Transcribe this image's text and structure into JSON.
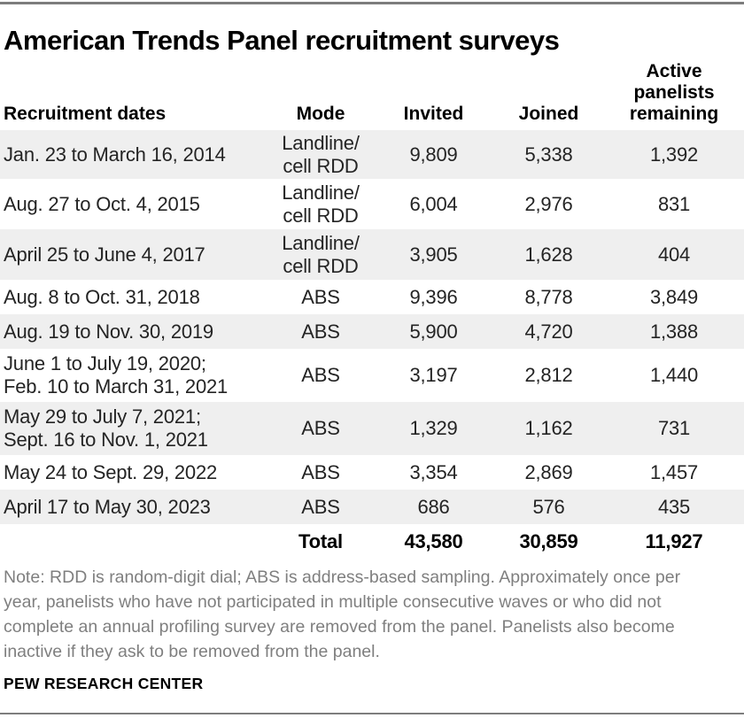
{
  "page": {
    "title": "American Trends Panel recruitment surveys",
    "note": "Note: RDD is random-digit dial; ABS is address-based sampling. Approximately once per\nyear, panelists who have not participated in multiple consecutive waves or who did not\ncomplete an annual profiling survey are removed from the panel. Panelists also become\ninactive if they ask to be removed from the panel.",
    "source": "PEW RESEARCH CENTER"
  },
  "colors": {
    "row_shade": "#efefef",
    "rule_gray": "#7d7d7d",
    "note_gray": "#7f7f7f",
    "text": "#222222"
  },
  "table": {
    "columns": [
      "Recruitment dates",
      "Mode",
      "Invited",
      "Joined",
      "Active\npanelists\nremaining"
    ],
    "rows": [
      {
        "dates": "Jan. 23 to March 16, 2014",
        "mode": "Landline/\ncell RDD",
        "invited": "9,809",
        "joined": "5,338",
        "remaining": "1,392"
      },
      {
        "dates": "Aug. 27 to Oct. 4, 2015",
        "mode": "Landline/\ncell RDD",
        "invited": "6,004",
        "joined": "2,976",
        "remaining": "831"
      },
      {
        "dates": "April 25 to June 4, 2017",
        "mode": "Landline/\ncell RDD",
        "invited": "3,905",
        "joined": "1,628",
        "remaining": "404"
      },
      {
        "dates": "Aug. 8 to Oct. 31, 2018",
        "mode": "ABS",
        "invited": "9,396",
        "joined": "8,778",
        "remaining": "3,849"
      },
      {
        "dates": "Aug. 19 to Nov. 30, 2019",
        "mode": "ABS",
        "invited": "5,900",
        "joined": "4,720",
        "remaining": "1,388"
      },
      {
        "dates": "June 1 to July 19, 2020;\nFeb. 10 to March 31, 2021",
        "mode": "ABS",
        "invited": "3,197",
        "joined": "2,812",
        "remaining": "1,440"
      },
      {
        "dates": "May 29 to July 7, 2021;\nSept. 16 to Nov. 1, 2021",
        "mode": "ABS",
        "invited": "1,329",
        "joined": "1,162",
        "remaining": "731"
      },
      {
        "dates": "May 24 to Sept. 29, 2022",
        "mode": "ABS",
        "invited": "3,354",
        "joined": "2,869",
        "remaining": "1,457"
      },
      {
        "dates": "April 17 to May 30, 2023",
        "mode": "ABS",
        "invited": "686",
        "joined": "576",
        "remaining": "435"
      }
    ],
    "total": {
      "label": "Total",
      "invited": "43,580",
      "joined": "30,859",
      "remaining": "11,927"
    }
  },
  "chart_data": {
    "type": "table",
    "title": "American Trends Panel recruitment surveys",
    "columns": [
      "Recruitment dates",
      "Mode",
      "Invited",
      "Joined",
      "Active panelists remaining"
    ],
    "rows": [
      [
        "Jan. 23 to March 16, 2014",
        "Landline/cell RDD",
        9809,
        5338,
        1392
      ],
      [
        "Aug. 27 to Oct. 4, 2015",
        "Landline/cell RDD",
        6004,
        2976,
        831
      ],
      [
        "April 25 to June 4, 2017",
        "Landline/cell RDD",
        3905,
        1628,
        404
      ],
      [
        "Aug. 8 to Oct. 31, 2018",
        "ABS",
        9396,
        8778,
        3849
      ],
      [
        "Aug. 19 to Nov. 30, 2019",
        "ABS",
        5900,
        4720,
        1388
      ],
      [
        "June 1 to July 19, 2020; Feb. 10 to March 31, 2021",
        "ABS",
        3197,
        2812,
        1440
      ],
      [
        "May 29 to July 7, 2021; Sept. 16 to Nov. 1, 2021",
        "ABS",
        1329,
        1162,
        731
      ],
      [
        "May 24 to Sept. 29, 2022",
        "ABS",
        3354,
        2869,
        1457
      ],
      [
        "April 17 to May 30, 2023",
        "ABS",
        686,
        576,
        435
      ]
    ],
    "total": [
      "Total",
      43580,
      30859,
      11927
    ],
    "notes": "Note: RDD is random-digit dial; ABS is address-based sampling. Approximately once per year, panelists who have not participated in multiple consecutive waves or who did not complete an annual profiling survey are removed from the panel. Panelists also become inactive if they ask to be removed from the panel.",
    "source": "PEW RESEARCH CENTER"
  }
}
